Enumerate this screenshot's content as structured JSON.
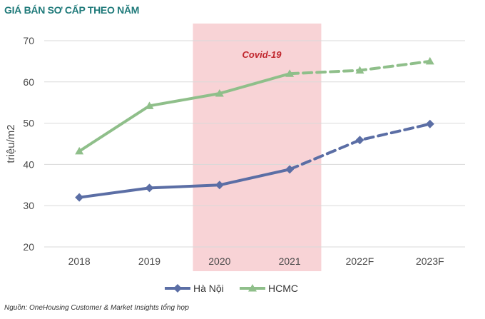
{
  "title": "GIÁ BÁN SƠ CẤP THEO NĂM",
  "source": "Nguồn: OneHousing Customer & Market Insights tổng hợp",
  "colors": {
    "hanoi": "#5b6ea5",
    "hcmc": "#8fbf8a",
    "highlight": "#f8d3d6",
    "annotation": "#c0262d"
  },
  "chart_data": {
    "type": "line",
    "title": "GIÁ BÁN SƠ CẤP THEO NĂM",
    "xlabel": "",
    "ylabel": "triệu/m2",
    "categories": [
      "2018",
      "2019",
      "2020",
      "2021",
      "2022F",
      "2023F"
    ],
    "ylim": [
      20,
      70
    ],
    "yticks": [
      20,
      30,
      40,
      50,
      60,
      70
    ],
    "grid": true,
    "legend_position": "bottom",
    "series": [
      {
        "name": "Hà Nội",
        "values": [
          32,
          34.3,
          35,
          38.8,
          45.9,
          49.8
        ],
        "marker": "diamond",
        "dashed_from_index": 3
      },
      {
        "name": "HCMC",
        "values": [
          43.2,
          54.2,
          57.2,
          62,
          62.8,
          65
        ],
        "marker": "triangle",
        "dashed_from_index": 3
      }
    ],
    "annotations": [
      {
        "text": "Covid-19",
        "x_from": "2020",
        "x_to": "2021"
      }
    ]
  }
}
